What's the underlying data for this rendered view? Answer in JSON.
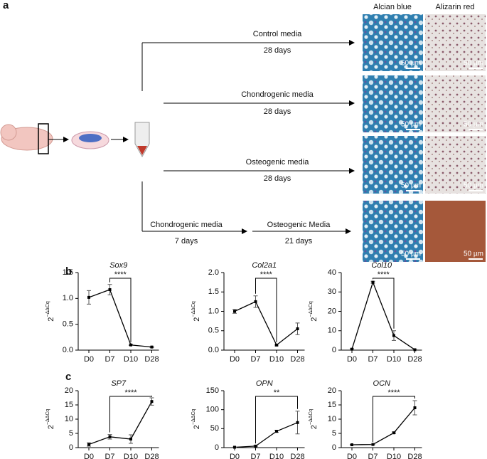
{
  "panel_labels": [
    "a",
    "b",
    "c"
  ],
  "schematic": {
    "column_headers": [
      "Alcian blue",
      "Alizarin red"
    ],
    "routes": [
      {
        "label": "Control media",
        "duration": "28 days"
      },
      {
        "label": "Chondrogenic media",
        "duration": "28 days"
      },
      {
        "label": "Osteogenic media",
        "duration": "28 days"
      },
      {
        "label": "Chondrogenic media",
        "duration": "7 days"
      },
      {
        "label": "Osteogenic Media",
        "duration": "21 days"
      }
    ],
    "scale_bars": [
      "50 µm",
      "50 µm",
      "50 µm",
      "50 µm",
      "50 µm",
      "50 µm",
      "50 µm",
      "50 µm"
    ]
  },
  "chart_data": [
    {
      "type": "line",
      "title": "Sox9",
      "y_label": {
        "base": "2",
        "exponent": "−ΔΔCq"
      },
      "categories": [
        "D0",
        "D7",
        "D10",
        "D28"
      ],
      "values": [
        1.02,
        1.17,
        0.1,
        0.06
      ],
      "errors": [
        0.13,
        0.1,
        0.01,
        0.01
      ],
      "ylim": [
        0,
        1.5
      ],
      "yticks": [
        {
          "value": 0,
          "label": "0.0"
        },
        {
          "value": 0.5,
          "label": "0.5"
        },
        {
          "value": 1,
          "label": "1.0"
        },
        {
          "value": 1.5,
          "label": "1.5"
        }
      ],
      "significance": {
        "label": "****",
        "between": [
          "D7",
          "D10"
        ]
      },
      "color": "#000000"
    },
    {
      "type": "line",
      "title": "Col2a1",
      "y_label": {
        "base": "2",
        "exponent": "−ΔΔCq"
      },
      "categories": [
        "D0",
        "D7",
        "D10",
        "D28"
      ],
      "values": [
        1.0,
        1.25,
        0.13,
        0.55
      ],
      "errors": [
        0.05,
        0.15,
        0.02,
        0.15
      ],
      "ylim": [
        0,
        2
      ],
      "yticks": [
        {
          "value": 0,
          "label": "0.0"
        },
        {
          "value": 0.5,
          "label": "0.5"
        },
        {
          "value": 1,
          "label": "1.0"
        },
        {
          "value": 1.5,
          "label": "1.5"
        },
        {
          "value": 2,
          "label": "2.0"
        }
      ],
      "significance": {
        "label": "****",
        "between": [
          "D7",
          "D10"
        ]
      },
      "color": "#000000"
    },
    {
      "type": "line",
      "title": "Col10",
      "y_label": {
        "base": "2",
        "exponent": "−ΔΔCq"
      },
      "categories": [
        "D0",
        "D7",
        "D10",
        "D28"
      ],
      "values": [
        0.5,
        35,
        7.5,
        0.2
      ],
      "errors": [
        0.3,
        0.5,
        2.5,
        0.1
      ],
      "ylim": [
        0,
        40
      ],
      "yticks": [
        0,
        10,
        20,
        30,
        40
      ],
      "significance": {
        "label": "****",
        "between": [
          "D7",
          "D10"
        ]
      },
      "color": "#000000"
    },
    {
      "type": "line",
      "title": "SP7",
      "y_label": {
        "base": "2",
        "exponent": "−ΔΔCq"
      },
      "categories": [
        "D0",
        "D7",
        "D10",
        "D28"
      ],
      "values": [
        1.1,
        3.8,
        3.0,
        16.2
      ],
      "errors": [
        0.6,
        0.8,
        1.5,
        1.3
      ],
      "ylim": [
        0,
        20
      ],
      "yticks": [
        0,
        5,
        10,
        15,
        20
      ],
      "significance": {
        "label": "****",
        "between": [
          "D7",
          "D28"
        ]
      },
      "color": "#000000"
    },
    {
      "type": "line",
      "title": "OPN",
      "y_label": {
        "base": "2",
        "exponent": "−ΔΔCq"
      },
      "categories": [
        "D0",
        "D7",
        "D10",
        "D28"
      ],
      "values": [
        1,
        4,
        43,
        66
      ],
      "errors": [
        0.5,
        1.5,
        3,
        30
      ],
      "ylim": [
        0,
        150
      ],
      "yticks": [
        0,
        50,
        100,
        150
      ],
      "significance": {
        "label": "**",
        "between": [
          "D7",
          "D28"
        ]
      },
      "color": "#000000"
    },
    {
      "type": "line",
      "title": "OCN",
      "y_label": {
        "base": "2",
        "exponent": "−ΔΔCq"
      },
      "categories": [
        "D0",
        "D7",
        "D10",
        "D28"
      ],
      "values": [
        1,
        1.1,
        5.2,
        14
      ],
      "errors": [
        0.1,
        0.1,
        0.3,
        2.5
      ],
      "ylim": [
        0,
        20
      ],
      "yticks": [
        0,
        5,
        10,
        15,
        20
      ],
      "significance": {
        "label": "****",
        "between": [
          "D7",
          "D28"
        ]
      },
      "color": "#000000"
    }
  ]
}
